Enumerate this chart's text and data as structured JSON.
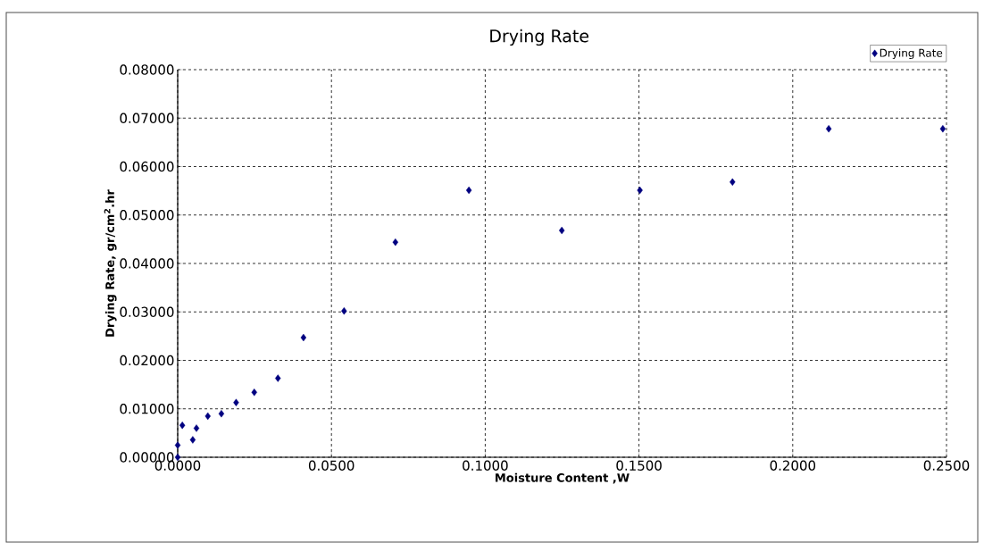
{
  "chart_data": {
    "type": "scatter",
    "title": "Drying Rate",
    "xlabel": "Moisture Content ,W",
    "ylabel": "Drying Rate, gr/cm$^{2}$.hr",
    "x": [
      0,
      0,
      0.0015,
      0.0049,
      0.0061,
      0.0098,
      0.0142,
      0.019,
      0.0249,
      0.0326,
      0.0409,
      0.0541,
      0.0708,
      0.0947,
      0.1249,
      0.1503,
      0.1804,
      0.2117,
      0.2488
    ],
    "series": [
      {
        "name": "Drying Rate",
        "color": "#000080",
        "values": [
          0,
          0.0025,
          0.0066,
          0.0036,
          0.006,
          0.0085,
          0.009,
          0.0113,
          0.0134,
          0.0163,
          0.0247,
          0.0302,
          0.0444,
          0.0551,
          0.0468,
          0.0551,
          0.0568,
          0.0678,
          0.0678
        ]
      }
    ],
    "xlim": [
      0,
      0.25
    ],
    "ylim": [
      0,
      0.08
    ],
    "xticks": [
      {
        "value": 0,
        "label": "0.0000"
      },
      {
        "value": 0.05,
        "label": "0.0500"
      },
      {
        "value": 0.1,
        "label": "0.1000"
      },
      {
        "value": 0.15,
        "label": "0.1500"
      },
      {
        "value": 0.2,
        "label": "0.2000"
      },
      {
        "value": 0.25,
        "label": "0.2500"
      }
    ],
    "yticks": [
      {
        "value": 0,
        "label": "0.00000"
      },
      {
        "value": 0.01,
        "label": "0.01000"
      },
      {
        "value": 0.02,
        "label": "0.02000"
      },
      {
        "value": 0.03,
        "label": "0.03000"
      },
      {
        "value": 0.04,
        "label": "0.04000"
      },
      {
        "value": 0.05,
        "label": "0.05000"
      },
      {
        "value": 0.06,
        "label": "0.06000"
      },
      {
        "value": 0.07,
        "label": "0.07000"
      },
      {
        "value": 0.08,
        "label": "0.08000"
      }
    ],
    "grid": true,
    "legend": "top right",
    "marker": "diamond"
  }
}
